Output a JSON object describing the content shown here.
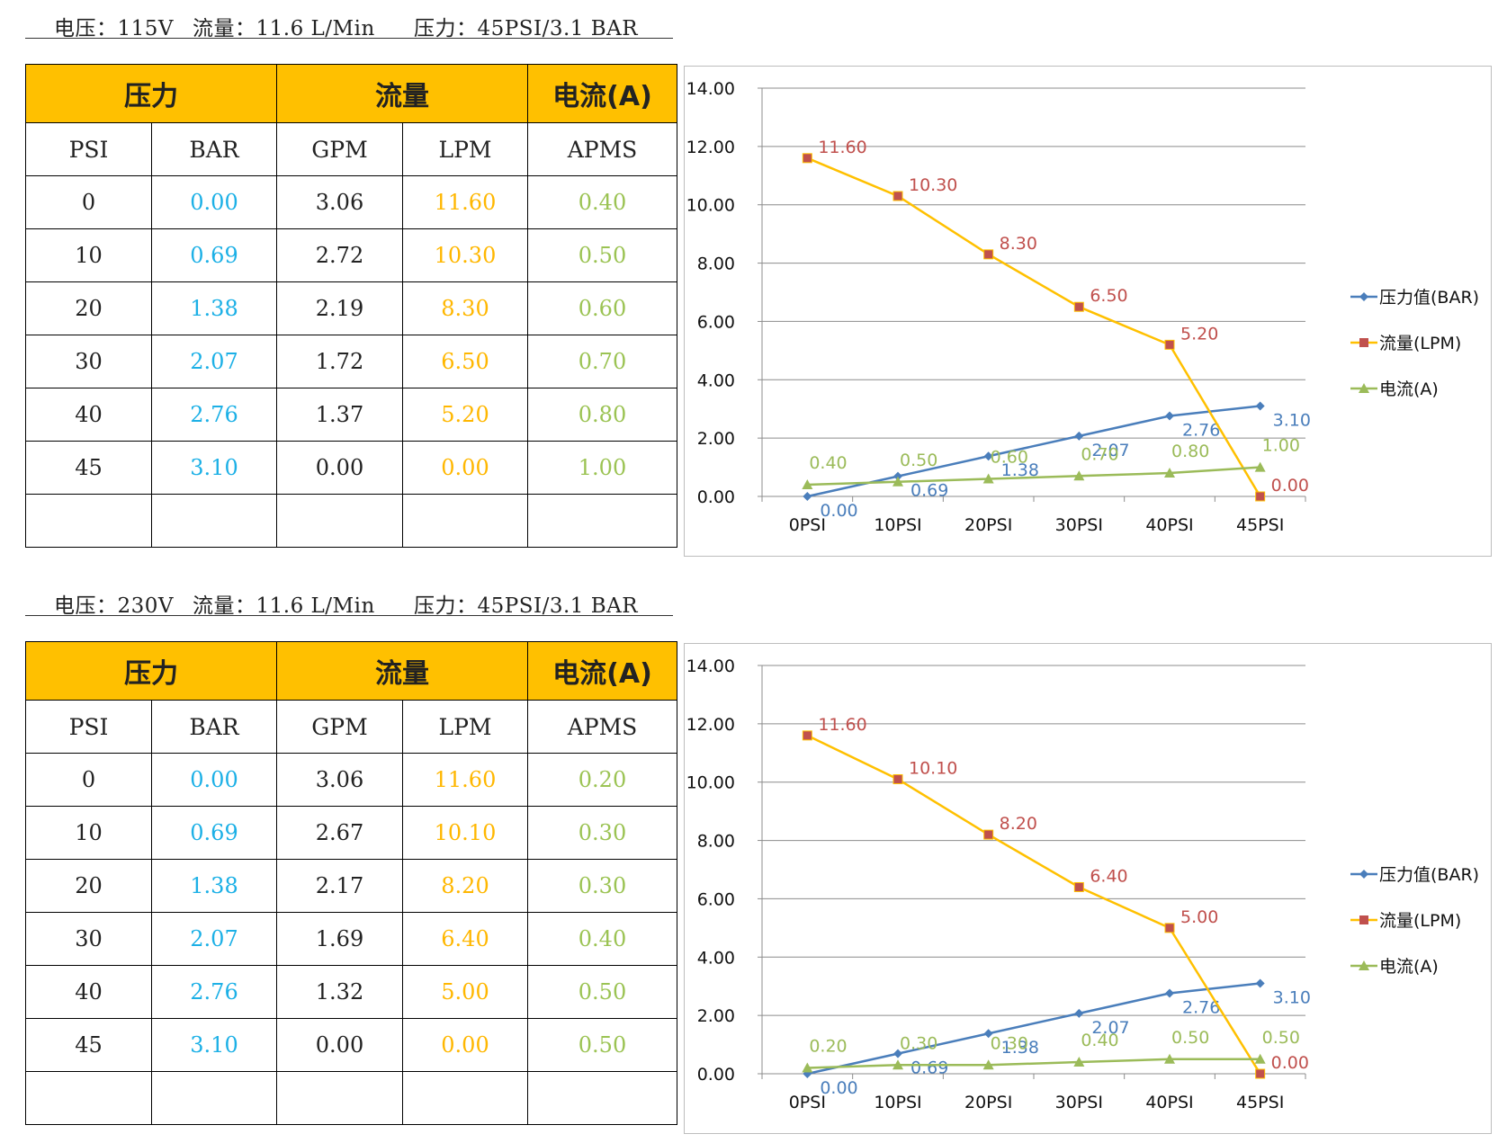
{
  "blocks": [
    {
      "spec": {
        "voltage": "电压：115V",
        "flow": "流量：11.6 L/Min",
        "pressure": "压力：45PSI/3.1 BAR"
      },
      "table": {
        "group_headers": [
          "压力",
          "流量",
          "电流(A)"
        ],
        "sub_headers": [
          "PSI",
          "BAR",
          "GPM",
          "LPM",
          "APMS"
        ],
        "rows": [
          [
            "0",
            "0.00",
            "3.06",
            "11.60",
            "0.40"
          ],
          [
            "10",
            "0.69",
            "2.72",
            "10.30",
            "0.50"
          ],
          [
            "20",
            "1.38",
            "2.19",
            "8.30",
            "0.60"
          ],
          [
            "30",
            "2.07",
            "1.72",
            "6.50",
            "0.70"
          ],
          [
            "40",
            "2.76",
            "1.37",
            "5.20",
            "0.80"
          ],
          [
            "45",
            "3.10",
            "0.00",
            "0.00",
            "1.00"
          ]
        ]
      }
    },
    {
      "spec": {
        "voltage": "电压：230V",
        "flow": "流量：11.6 L/Min",
        "pressure": "压力：45PSI/3.1 BAR"
      },
      "table": {
        "group_headers": [
          "压力",
          "流量",
          "电流(A)"
        ],
        "sub_headers": [
          "PSI",
          "BAR",
          "GPM",
          "LPM",
          "APMS"
        ],
        "rows": [
          [
            "0",
            "0.00",
            "3.06",
            "11.60",
            "0.20"
          ],
          [
            "10",
            "0.69",
            "2.67",
            "10.10",
            "0.30"
          ],
          [
            "20",
            "1.38",
            "2.17",
            "8.20",
            "0.30"
          ],
          [
            "30",
            "2.07",
            "1.69",
            "6.40",
            "0.40"
          ],
          [
            "40",
            "2.76",
            "1.32",
            "5.00",
            "0.50"
          ],
          [
            "45",
            "3.10",
            "0.00",
            "0.00",
            "0.50"
          ]
        ]
      }
    }
  ],
  "chart_data": [
    {
      "type": "line",
      "categories": [
        "0PSI",
        "10PSI",
        "20PSI",
        "30PSI",
        "40PSI",
        "45PSI"
      ],
      "y_ticks": [
        "0.00",
        "2.00",
        "4.00",
        "6.00",
        "8.00",
        "10.00",
        "12.00",
        "14.00"
      ],
      "ylim": [
        0,
        14
      ],
      "grid": true,
      "legend_position": "right",
      "series": [
        {
          "name": "压力值(BAR)",
          "color": "#4a7ebb",
          "marker": "diamond",
          "label_color": "#4a7ebb",
          "values": [
            0.0,
            0.69,
            1.38,
            2.07,
            2.76,
            3.1
          ],
          "labels": [
            "0.00",
            "0.69",
            "1.38",
            "2.07",
            "2.76",
            "3.10"
          ]
        },
        {
          "name": "流量(LPM)",
          "color": "#ffc000",
          "marker": "square",
          "label_color": "#c0504d",
          "values": [
            11.6,
            10.3,
            8.3,
            6.5,
            5.2,
            0.0
          ],
          "labels": [
            "11.60",
            "10.30",
            "8.30",
            "6.50",
            "5.20",
            "0.00"
          ]
        },
        {
          "name": "电流(A)",
          "color": "#9bbb59",
          "marker": "triangle",
          "label_color": "#9bbb59",
          "values": [
            0.4,
            0.5,
            0.6,
            0.7,
            0.8,
            1.0
          ],
          "labels": [
            "0.40",
            "0.50",
            "0.60",
            "0.70",
            "0.80",
            "1.00"
          ]
        }
      ]
    },
    {
      "type": "line",
      "categories": [
        "0PSI",
        "10PSI",
        "20PSI",
        "30PSI",
        "40PSI",
        "45PSI"
      ],
      "y_ticks": [
        "0.00",
        "2.00",
        "4.00",
        "6.00",
        "8.00",
        "10.00",
        "12.00",
        "14.00"
      ],
      "ylim": [
        0,
        14
      ],
      "grid": true,
      "legend_position": "right",
      "series": [
        {
          "name": "压力值(BAR)",
          "color": "#4a7ebb",
          "marker": "diamond",
          "label_color": "#4a7ebb",
          "values": [
            0.0,
            0.69,
            1.38,
            2.07,
            2.76,
            3.1
          ],
          "labels": [
            "0.00",
            "0.69",
            "1.38",
            "2.07",
            "2.76",
            "3.10"
          ]
        },
        {
          "name": "流量(LPM)",
          "color": "#ffc000",
          "marker": "square",
          "label_color": "#c0504d",
          "values": [
            11.6,
            10.1,
            8.2,
            6.4,
            5.0,
            0.0
          ],
          "labels": [
            "11.60",
            "10.10",
            "8.20",
            "6.40",
            "5.00",
            "0.00"
          ]
        },
        {
          "name": "电流(A)",
          "color": "#9bbb59",
          "marker": "triangle",
          "label_color": "#9bbb59",
          "values": [
            0.2,
            0.3,
            0.3,
            0.4,
            0.5,
            0.5
          ],
          "labels": [
            "0.20",
            "0.30",
            "0.30",
            "0.40",
            "0.50",
            "0.50"
          ]
        }
      ]
    }
  ]
}
